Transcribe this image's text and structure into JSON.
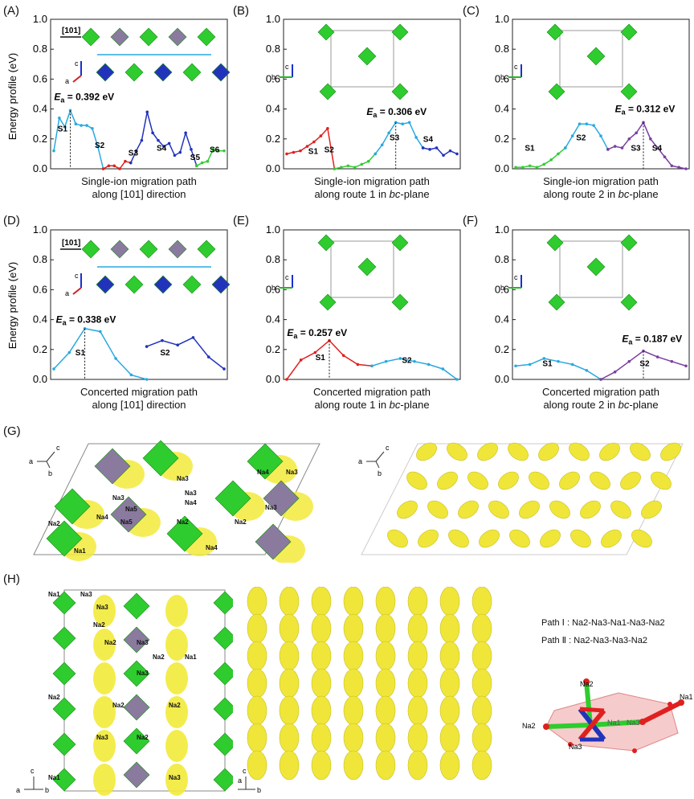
{
  "panels_top": [
    {
      "label": "(A)",
      "ea": "E<sub>a</sub>",
      "ea_text": "= 0.392 eV",
      "caption_line1": "Single-ion migration path",
      "caption_line2": "along [101] direction",
      "inset_labels": [
        "[101]",
        "c",
        "a",
        "S1",
        "S2",
        "S3",
        "S4",
        "S5",
        "S6"
      ],
      "segment_labels": [
        "S1",
        "S2",
        "S3",
        "S4",
        "S5",
        "S6"
      ]
    },
    {
      "label": "(B)",
      "ea_text": "= 0.306 eV",
      "caption_line1": "Single-ion migration path",
      "caption_line2_pre": "along route 1 in ",
      "caption_line2_em": "bc",
      "caption_line2_post": "-plane",
      "inset_labels": [
        "S2",
        "S3",
        "S1",
        "S4",
        "c",
        "b"
      ],
      "segment_labels": [
        "S1",
        "S2",
        "S3",
        "S4"
      ]
    },
    {
      "label": "(C)",
      "ea_text": "= 0.312 eV",
      "caption_line1": "Single-ion migration path",
      "caption_line2_pre": "along route 2 in ",
      "caption_line2_em": "bc",
      "caption_line2_post": "-plane",
      "inset_labels": [
        "S1",
        "S2",
        "S3",
        "S4",
        "c",
        "b"
      ],
      "segment_labels": [
        "S1",
        "S2",
        "S3",
        "S4"
      ]
    }
  ],
  "panels_mid": [
    {
      "label": "(D)",
      "ea_text": "= 0.338 eV",
      "caption_line1": "Concerted migration path",
      "caption_line2": "along [101] direction",
      "inset_labels": [
        "[101]",
        "c",
        "a",
        "S1",
        "S2"
      ],
      "segment_labels": [
        "S1",
        "S2"
      ]
    },
    {
      "label": "(E)",
      "ea_text": "= 0.257 eV",
      "caption_line1": "Concerted migration path",
      "caption_line2_pre": "along route 1 in ",
      "caption_line2_em": "bc",
      "caption_line2_post": "-plane",
      "inset_labels": [
        "S1",
        "S2",
        "c",
        "b"
      ],
      "segment_labels": [
        "S1",
        "S2"
      ]
    },
    {
      "label": "(F)",
      "ea_text": "= 0.187 eV",
      "caption_line1": "Concerted migration path",
      "caption_line2_pre": "along route 2 in ",
      "caption_line2_em": "bc",
      "caption_line2_post": "-plane",
      "inset_labels": [
        "S1",
        "S2",
        "c",
        "b"
      ],
      "segment_labels": [
        "S1",
        "S2"
      ]
    }
  ],
  "ylabel": "Energy profile (eV)",
  "yticks": [
    "0.0",
    "0.2",
    "0.4",
    "0.6",
    "0.8",
    "1.0"
  ],
  "colors": {
    "light_blue": "#29a9e0",
    "red": "#e02020",
    "green": "#33cc33",
    "dark_blue": "#2233bb",
    "purple": "#7a3fa0",
    "yellow": "#f2ea3a",
    "octa_green": "#2ecc2e",
    "octa_purple": "#8a7a9e"
  },
  "chart_data": [
    {
      "type": "line",
      "panel": "A",
      "ylim": [
        0,
        1.0
      ],
      "series": [
        {
          "color": "#29a9e0",
          "values": [
            0.12,
            0.34,
            0.28,
            0.39,
            0.3,
            0.29,
            0.29,
            0.27,
            0.15,
            0.0
          ]
        },
        {
          "color": "#e02020",
          "values": [
            0.0,
            0.02,
            0.02,
            0.0,
            0.05,
            0.04
          ]
        },
        {
          "color": "#2233bb",
          "values": [
            0.04,
            0.12,
            0.19,
            0.38,
            0.24,
            0.19,
            0.15,
            0.17,
            0.09,
            0.11,
            0.24,
            0.13,
            0.02
          ]
        },
        {
          "color": "#33cc33",
          "values": [
            0.02,
            0.04,
            0.05,
            0.13,
            0.12,
            0.12
          ]
        }
      ],
      "annotation": "Ea = 0.392 eV"
    },
    {
      "type": "line",
      "panel": "B",
      "ylim": [
        0,
        1.0
      ],
      "series": [
        {
          "color": "#e02020",
          "values": [
            0.1,
            0.11,
            0.12,
            0.15,
            0.18,
            0.22,
            0.27,
            0.0
          ]
        },
        {
          "color": "#33cc33",
          "values": [
            0.0,
            0.01,
            0.02,
            0.01,
            0.03,
            0.05,
            0.1
          ]
        },
        {
          "color": "#29a9e0",
          "values": [
            0.1,
            0.16,
            0.24,
            0.31,
            0.3,
            0.31,
            0.21,
            0.14
          ]
        },
        {
          "color": "#2233bb",
          "values": [
            0.14,
            0.13,
            0.14,
            0.09,
            0.12,
            0.1
          ]
        }
      ],
      "annotation": "Ea = 0.306 eV"
    },
    {
      "type": "line",
      "panel": "C",
      "ylim": [
        0,
        1.0
      ],
      "series": [
        {
          "color": "#33cc33",
          "values": [
            0.01,
            0.01,
            0.02,
            0.01,
            0.03,
            0.06,
            0.1,
            0.14
          ]
        },
        {
          "color": "#29a9e0",
          "values": [
            0.14,
            0.22,
            0.3,
            0.3,
            0.29,
            0.22,
            0.13
          ]
        },
        {
          "color": "#7a3fa0",
          "values": [
            0.13,
            0.15,
            0.14,
            0.2,
            0.24,
            0.31,
            0.2,
            0.14,
            0.08,
            0.02,
            0.01,
            0.0
          ]
        }
      ],
      "annotation": "Ea = 0.312 eV"
    },
    {
      "type": "line",
      "panel": "D",
      "ylim": [
        0,
        1.0
      ],
      "series": [
        {
          "color": "#29a9e0",
          "values": [
            0.07,
            0.18,
            0.34,
            0.32,
            0.14,
            0.03,
            0.0
          ]
        },
        {
          "color": "#2233bb",
          "values": [
            0.22,
            0.26,
            0.23,
            0.28,
            0.15,
            0.07
          ]
        }
      ],
      "annotation": "Ea = 0.338 eV"
    },
    {
      "type": "line",
      "panel": "E",
      "ylim": [
        0,
        1.0
      ],
      "series": [
        {
          "color": "#e02020",
          "values": [
            0.0,
            0.13,
            0.18,
            0.26,
            0.16,
            0.1,
            0.09
          ]
        },
        {
          "color": "#29a9e0",
          "values": [
            0.09,
            0.12,
            0.14,
            0.12,
            0.1,
            0.07,
            0.0
          ]
        }
      ],
      "annotation": "Ea = 0.257 eV"
    },
    {
      "type": "line",
      "panel": "F",
      "ylim": [
        0,
        1.0
      ],
      "series": [
        {
          "color": "#29a9e0",
          "values": [
            0.09,
            0.1,
            0.14,
            0.12,
            0.1,
            0.06,
            0.0
          ]
        },
        {
          "color": "#7a3fa0",
          "values": [
            0.0,
            0.05,
            0.12,
            0.19,
            0.15,
            0.12,
            0.09
          ]
        }
      ],
      "annotation": "Ea = 0.187 eV"
    }
  ],
  "panel_g": {
    "label": "(G)",
    "axis_labels": [
      "c",
      "a",
      "b"
    ],
    "atom_labels": [
      "Na3",
      "Na4",
      "Na3",
      "Na3",
      "Na4",
      "Na5",
      "Na4",
      "Na5",
      "Na2",
      "Na2",
      "Na2",
      "Na3",
      "Na3",
      "Na1",
      "Na4"
    ]
  },
  "panel_h": {
    "label": "(H)",
    "axis_labels": [
      "c",
      "a",
      "b"
    ],
    "atom_labels": [
      "Na1",
      "Na3",
      "Na3",
      "Na2",
      "Na2",
      "Na3",
      "Na2",
      "Na1",
      "Na2",
      "Na3",
      "Na2",
      "Na2",
      "Na3",
      "Na2",
      "Na1",
      "Na3"
    ],
    "path1": "Path Ⅰ : Na2-Na3-Na1-Na3-Na2",
    "path2": "Path Ⅱ : Na2-Na3-Na3-Na2",
    "cluster_labels": [
      "Na2",
      "Na1",
      "Na2",
      "Na3",
      "Na3",
      "Na1"
    ]
  }
}
